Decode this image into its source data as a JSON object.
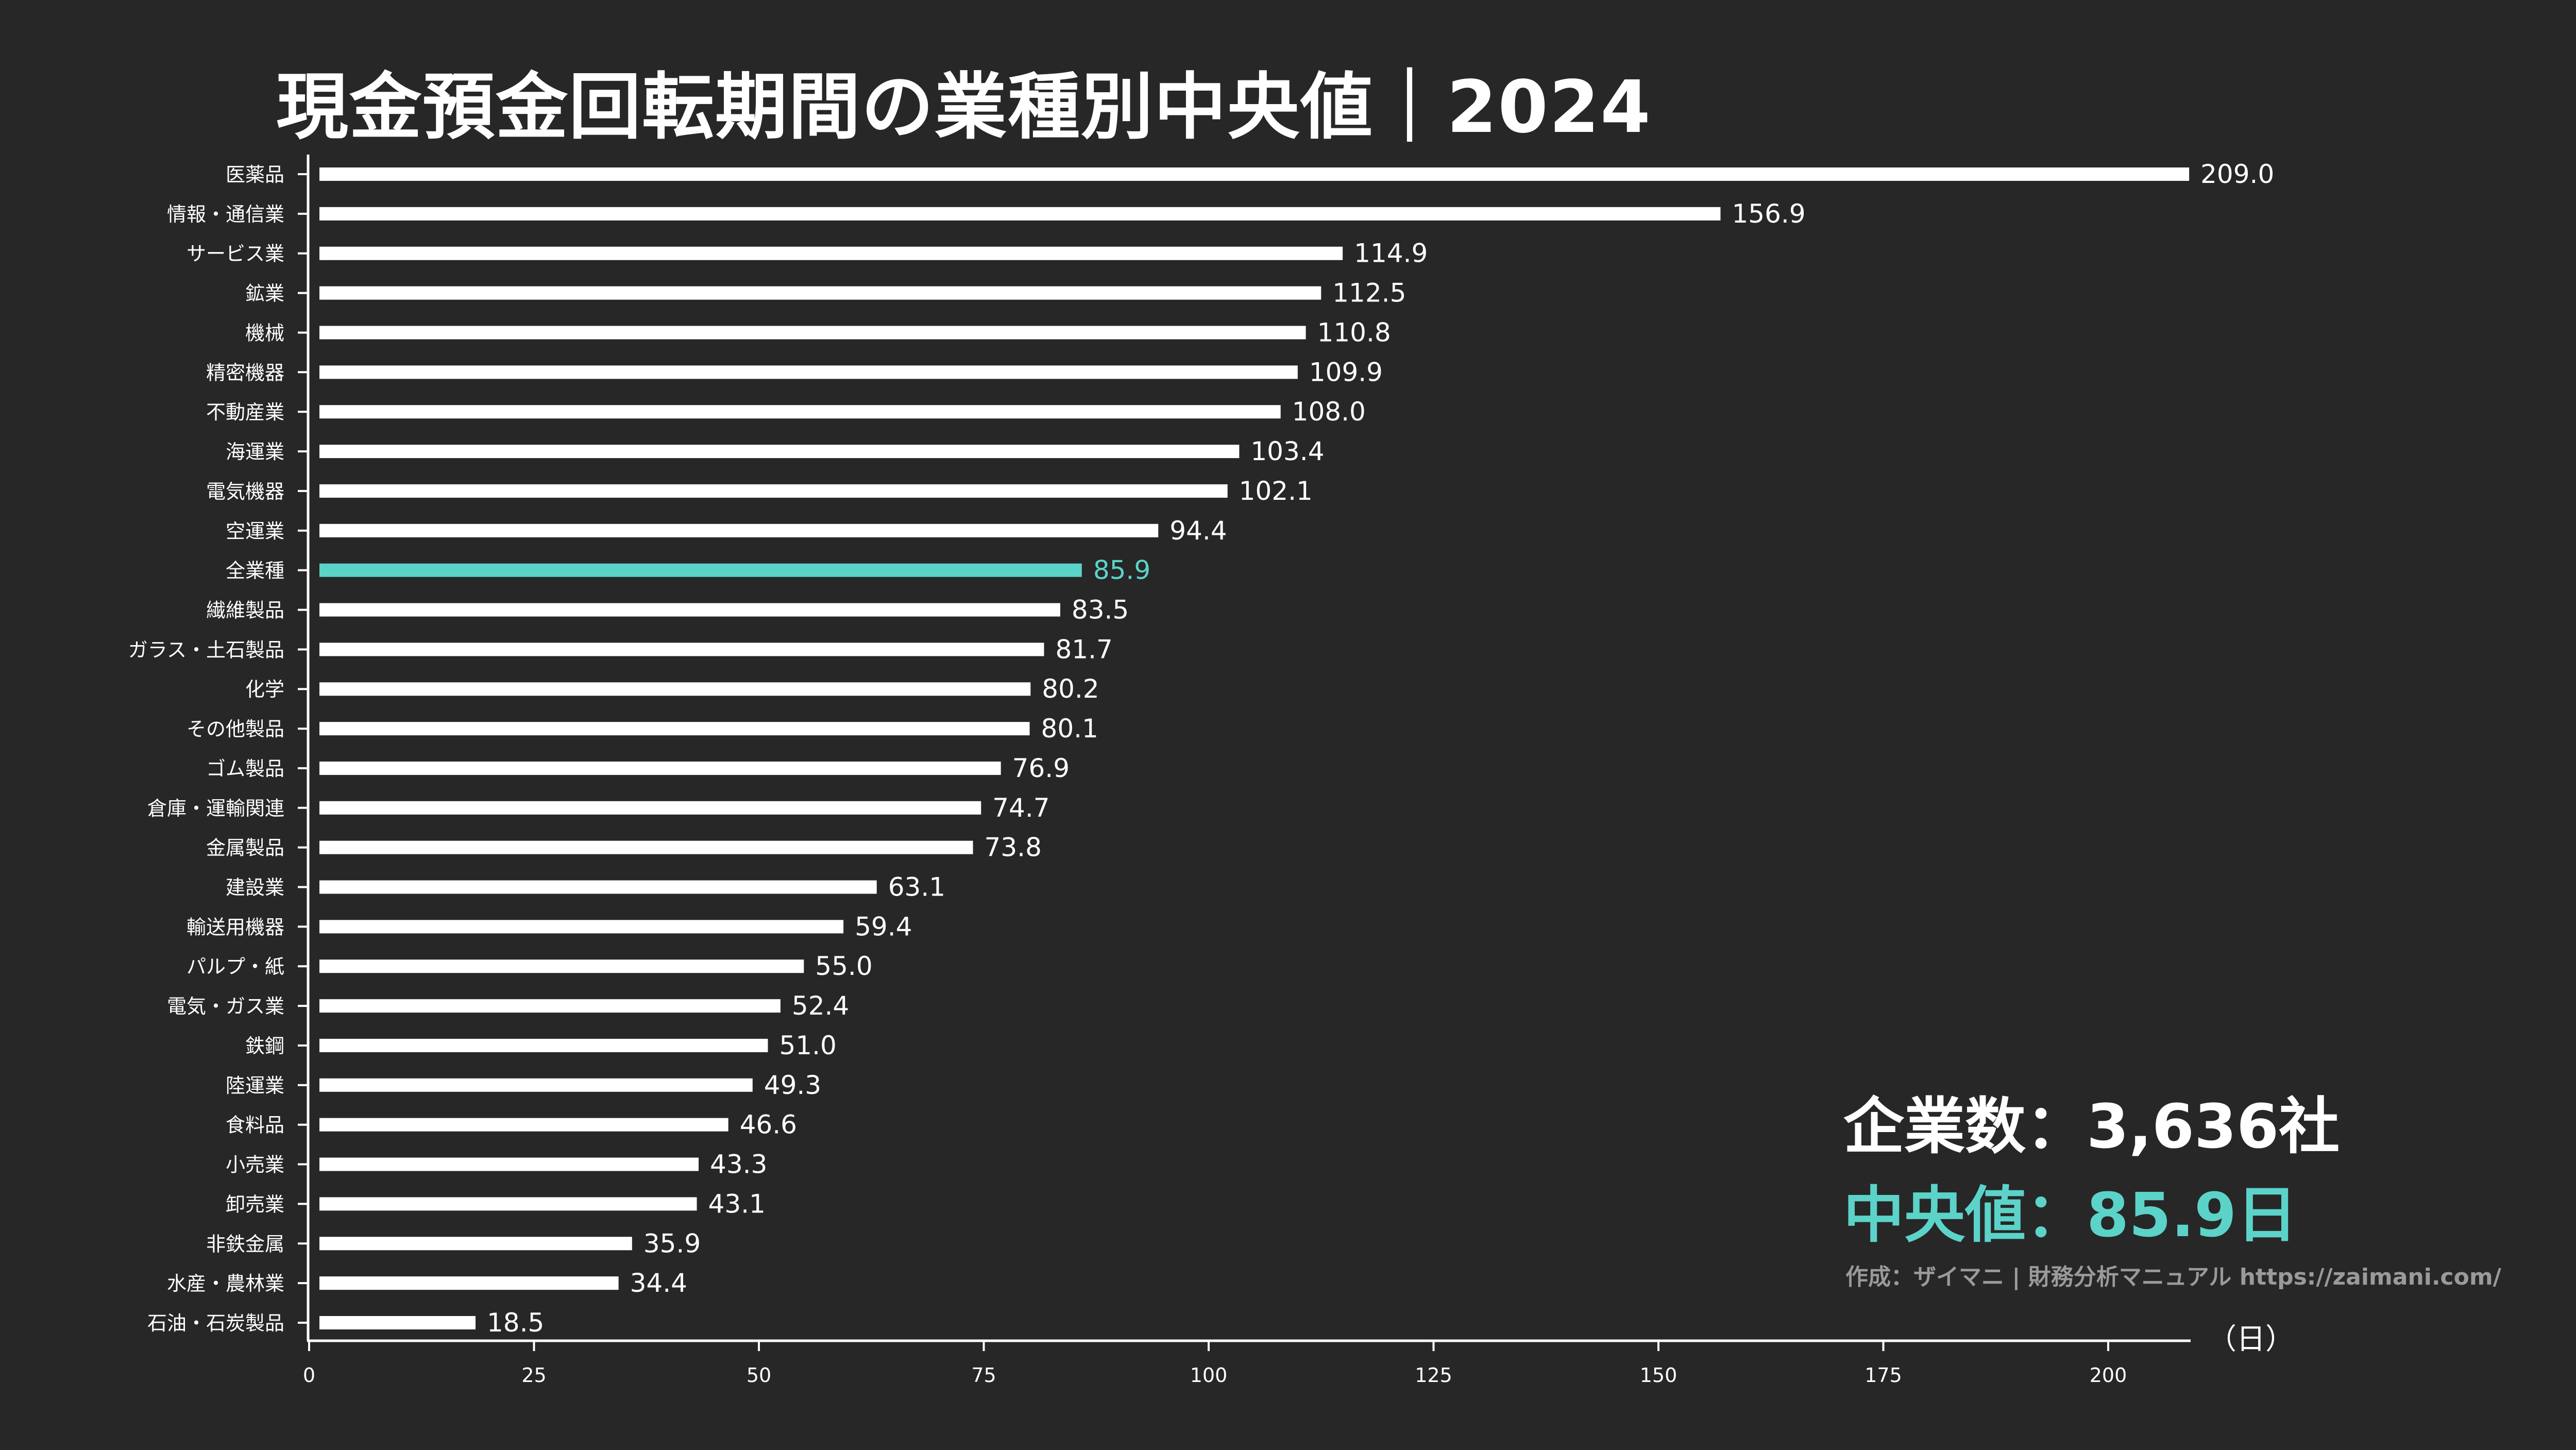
{
  "title": "現金預金回転期間の業種別中央値｜2024",
  "summary": {
    "companies": "企業数：3,636社",
    "median": "中央値：85.9日"
  },
  "credit": "作成：ザイマニ | 財務分析マニュアル https://zaimani.com/",
  "colors": {
    "background": "#272727",
    "bar": "#ffffff",
    "highlight": "#5cd3c9",
    "text": "#ffffff",
    "credit": "#9a9a9a"
  },
  "chart_data": {
    "type": "bar",
    "orientation": "horizontal",
    "title": "現金預金回転期間の業種別中央値｜2024",
    "xlabel": "（日）",
    "ylabel": "",
    "xlim": [
      0,
      210
    ],
    "xticks": [
      0,
      25,
      50,
      75,
      100,
      125,
      150,
      175,
      200
    ],
    "grid": false,
    "highlight_category": "全業種",
    "categories": [
      "医薬品",
      "情報・通信業",
      "サービス業",
      "鉱業",
      "機械",
      "精密機器",
      "不動産業",
      "海運業",
      "電気機器",
      "空運業",
      "全業種",
      "繊維製品",
      "ガラス・土石製品",
      "化学",
      "その他製品",
      "ゴム製品",
      "倉庫・運輸関連",
      "金属製品",
      "建設業",
      "輸送用機器",
      "パルプ・紙",
      "電気・ガス業",
      "鉄鋼",
      "陸運業",
      "食料品",
      "小売業",
      "卸売業",
      "非鉄金属",
      "水産・農林業",
      "石油・石炭製品"
    ],
    "values": [
      209.0,
      156.9,
      114.9,
      112.5,
      110.8,
      109.9,
      108.0,
      103.4,
      102.1,
      94.4,
      85.9,
      83.5,
      81.7,
      80.2,
      80.1,
      76.9,
      74.7,
      73.8,
      63.1,
      59.4,
      55.0,
      52.4,
      51.0,
      49.3,
      46.6,
      43.3,
      43.1,
      35.9,
      34.4,
      18.5
    ]
  }
}
